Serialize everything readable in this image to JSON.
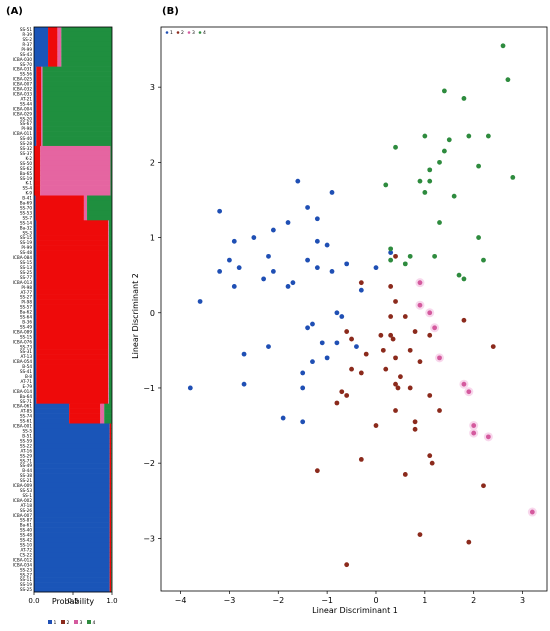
{
  "panels": {
    "a_label": "(A)",
    "b_label": "(B)"
  },
  "colors": {
    "1": "#1f4fb4",
    "2": "#8b2a1c",
    "3": "#d45a9e",
    "4": "#2e8b3e",
    "bar_blue": "#1a55b8",
    "bar_red": "#ee0a0a",
    "bar_pink": "#e565a1",
    "bar_green": "#1f8f3f"
  },
  "chart_data": [
    {
      "type": "bar",
      "subtype": "stacked-horizontal-structure",
      "xlabel": "Probability",
      "x_ticks": [
        "0.0",
        "0.5",
        "1.0"
      ],
      "xlim": [
        0,
        1
      ],
      "legend": {
        "placement": "bottom-center",
        "entries": [
          "1",
          "2",
          "3",
          "4"
        ]
      },
      "categories": [
        "SS-51",
        "R-39",
        "SS-2",
        "R-37",
        "PI-99",
        "SS-43",
        "ICBA-030",
        "SS-70",
        "ICBA-031",
        "SS-56",
        "ICBA-025",
        "ICBA-007",
        "ICBA-032",
        "ICBA-033",
        "AT-21",
        "SS-44",
        "ICBA-004",
        "ICBA-029",
        "SS-20",
        "SS-67",
        "PI-98",
        "ICBA-011",
        "SS-40",
        "SS-28",
        "SS-32",
        "SS-37",
        "K-2",
        "SS-50",
        "SS-62",
        "Ba-65",
        "SS-19",
        "K-1",
        "SS-4",
        "K-9",
        "B-41",
        "Ba-69",
        "SS-70",
        "SS-53",
        "SS-7",
        "SS-14",
        "Ba-32",
        "SS-3",
        "SS-15",
        "SS-19",
        "PI-99",
        "SS-48",
        "ICBA-084",
        "SS-15",
        "SS-13",
        "SS-25",
        "SS-77",
        "ICBA-013",
        "PI-98",
        "AT-77",
        "SS-27",
        "PI-98",
        "SS-57",
        "Ba-62",
        "SS-64",
        "B-36",
        "SS-49",
        "ICBA-089",
        "SS-15",
        "ICBA-076",
        "SS-73",
        "SS-31",
        "AT-13",
        "ICBA-054",
        "B-54",
        "SS-41",
        "B-8",
        "AT-71",
        "E-79",
        "ICBA-014",
        "Ba-64",
        "SS-71",
        "ICBA-061",
        "AT-85",
        "SS-74",
        "SS-61",
        "ICBA-001",
        "SS-5",
        "B-51",
        "SS-59",
        "SS-22",
        "AT-16",
        "SS-29",
        "SS-71",
        "SS-49",
        "B-44",
        "SS-38",
        "SS-21",
        "ICBA-009",
        "SS-53",
        "SS-1",
        "ICBA-002",
        "AT-18",
        "SS-26",
        "ICBA-007",
        "SS-87",
        "Ba-61",
        "SS-40",
        "SS-48",
        "SS-42",
        "SS-10",
        "AT-72",
        "CS-22",
        "ICBA-012",
        "ICBA-034",
        "SS-23",
        "SS-27",
        "SS-11",
        "SS-19",
        "SS-25"
      ],
      "composition": [
        {
          "rows": [
            0,
            8
          ],
          "values": [
            0.18,
            0.12,
            0.05,
            0.65
          ]
        },
        {
          "rows": [
            8,
            24
          ],
          "values": [
            0.03,
            0.06,
            0.02,
            0.89
          ]
        },
        {
          "rows": [
            24,
            34
          ],
          "values": [
            0.0,
            0.08,
            0.9,
            0.02
          ]
        },
        {
          "rows": [
            34,
            39
          ],
          "values": [
            0.02,
            0.62,
            0.04,
            0.32
          ]
        },
        {
          "rows": [
            39,
            76
          ],
          "values": [
            0.03,
            0.92,
            0.01,
            0.04
          ]
        },
        {
          "rows": [
            76,
            80
          ],
          "values": [
            0.45,
            0.4,
            0.05,
            0.1
          ]
        },
        {
          "rows": [
            80,
            114
          ],
          "values": [
            0.97,
            0.02,
            0.0,
            0.01
          ]
        }
      ]
    },
    {
      "type": "scatter",
      "xlabel": "Linear Discriminant 1",
      "ylabel": "Linear Discriminant 2",
      "xlim": [
        -4.4,
        3.5
      ],
      "ylim": [
        -3.7,
        3.8
      ],
      "x_ticks": [
        -4,
        -3,
        -2,
        -1,
        0,
        1,
        2,
        3
      ],
      "y_ticks": [
        -3,
        -2,
        -1,
        0,
        1,
        2,
        3
      ],
      "legend": {
        "placement": "top-left",
        "entries": [
          "1",
          "2",
          "3",
          "4"
        ]
      },
      "series": [
        {
          "name": "1",
          "points": [
            [
              -3.8,
              -1.0
            ],
            [
              -3.6,
              0.15
            ],
            [
              -3.2,
              0.55
            ],
            [
              -3.2,
              1.35
            ],
            [
              -3.0,
              0.7
            ],
            [
              -2.9,
              0.95
            ],
            [
              -2.9,
              0.35
            ],
            [
              -2.8,
              0.6
            ],
            [
              -2.7,
              -0.55
            ],
            [
              -2.7,
              -0.95
            ],
            [
              -2.5,
              1.0
            ],
            [
              -2.3,
              0.45
            ],
            [
              -2.2,
              0.75
            ],
            [
              -2.2,
              -0.45
            ],
            [
              -2.1,
              0.55
            ],
            [
              -2.1,
              1.1
            ],
            [
              -1.9,
              -1.4
            ],
            [
              -1.8,
              0.35
            ],
            [
              -1.8,
              1.2
            ],
            [
              -1.7,
              0.4
            ],
            [
              -1.6,
              1.75
            ],
            [
              -1.5,
              -0.8
            ],
            [
              -1.5,
              -1.0
            ],
            [
              -1.5,
              -1.45
            ],
            [
              -1.4,
              0.7
            ],
            [
              -1.4,
              1.4
            ],
            [
              -1.4,
              -0.2
            ],
            [
              -1.3,
              -0.15
            ],
            [
              -1.3,
              -0.65
            ],
            [
              -1.2,
              0.95
            ],
            [
              -1.2,
              0.6
            ],
            [
              -1.2,
              1.25
            ],
            [
              -1.1,
              -0.4
            ],
            [
              -1.0,
              0.9
            ],
            [
              -1.0,
              -0.6
            ],
            [
              -0.9,
              0.55
            ],
            [
              -0.9,
              1.6
            ],
            [
              -0.8,
              0.0
            ],
            [
              -0.8,
              -0.4
            ],
            [
              -0.7,
              -0.05
            ],
            [
              -0.6,
              0.65
            ],
            [
              -0.4,
              -0.45
            ],
            [
              -0.3,
              0.3
            ],
            [
              0.0,
              0.6
            ],
            [
              0.3,
              0.8
            ]
          ]
        },
        {
          "name": "2",
          "points": [
            [
              -1.2,
              -2.1
            ],
            [
              -0.8,
              -1.2
            ],
            [
              -0.7,
              -1.05
            ],
            [
              -0.6,
              -1.1
            ],
            [
              -0.6,
              -0.25
            ],
            [
              -0.6,
              -3.35
            ],
            [
              -0.5,
              -0.75
            ],
            [
              -0.5,
              -0.35
            ],
            [
              -0.3,
              -1.95
            ],
            [
              -0.3,
              -0.8
            ],
            [
              -0.3,
              0.4
            ],
            [
              -0.2,
              -0.55
            ],
            [
              0.0,
              -1.5
            ],
            [
              0.1,
              -0.3
            ],
            [
              0.15,
              -0.5
            ],
            [
              0.2,
              -0.75
            ],
            [
              0.3,
              -0.3
            ],
            [
              0.3,
              -0.05
            ],
            [
              0.3,
              0.35
            ],
            [
              0.35,
              -0.35
            ],
            [
              0.4,
              0.75
            ],
            [
              0.4,
              0.15
            ],
            [
              0.4,
              -0.95
            ],
            [
              0.4,
              -1.3
            ],
            [
              0.4,
              -0.6
            ],
            [
              0.45,
              -1.0
            ],
            [
              0.5,
              -0.85
            ],
            [
              0.6,
              -2.15
            ],
            [
              0.6,
              -0.05
            ],
            [
              0.7,
              -1.0
            ],
            [
              0.7,
              -0.5
            ],
            [
              0.8,
              -1.45
            ],
            [
              0.8,
              -1.55
            ],
            [
              0.8,
              -0.25
            ],
            [
              0.9,
              -0.65
            ],
            [
              1.1,
              -0.3
            ],
            [
              1.1,
              -1.1
            ],
            [
              1.1,
              -1.9
            ],
            [
              1.15,
              -2.0
            ],
            [
              1.3,
              -1.3
            ],
            [
              0.9,
              -2.95
            ],
            [
              1.8,
              -0.1
            ],
            [
              2.2,
              -2.3
            ],
            [
              2.4,
              -0.45
            ],
            [
              1.9,
              -3.05
            ]
          ]
        },
        {
          "name": "3",
          "points": [
            [
              0.9,
              0.4
            ],
            [
              0.9,
              0.1
            ],
            [
              1.1,
              0.0
            ],
            [
              1.2,
              -0.2
            ],
            [
              1.3,
              -0.6
            ],
            [
              1.8,
              -0.95
            ],
            [
              1.9,
              -1.05
            ],
            [
              2.0,
              -1.5
            ],
            [
              2.0,
              -1.6
            ],
            [
              2.3,
              -1.65
            ],
            [
              3.2,
              -2.65
            ]
          ]
        },
        {
          "name": "4",
          "points": [
            [
              0.2,
              1.7
            ],
            [
              0.3,
              0.85
            ],
            [
              0.3,
              0.7
            ],
            [
              0.4,
              2.2
            ],
            [
              0.6,
              0.65
            ],
            [
              0.7,
              0.75
            ],
            [
              0.9,
              1.75
            ],
            [
              1.0,
              2.35
            ],
            [
              1.0,
              1.6
            ],
            [
              1.1,
              1.9
            ],
            [
              1.1,
              1.75
            ],
            [
              1.2,
              0.75
            ],
            [
              1.3,
              2.0
            ],
            [
              1.3,
              1.2
            ],
            [
              1.4,
              2.15
            ],
            [
              1.4,
              2.95
            ],
            [
              1.5,
              2.3
            ],
            [
              1.6,
              1.55
            ],
            [
              1.7,
              0.5
            ],
            [
              1.8,
              2.85
            ],
            [
              1.9,
              2.35
            ],
            [
              2.1,
              1.95
            ],
            [
              2.1,
              1.0
            ],
            [
              2.2,
              0.7
            ],
            [
              2.3,
              2.35
            ],
            [
              2.6,
              3.55
            ],
            [
              2.7,
              3.1
            ],
            [
              2.8,
              1.8
            ],
            [
              1.8,
              0.45
            ]
          ]
        }
      ]
    }
  ]
}
